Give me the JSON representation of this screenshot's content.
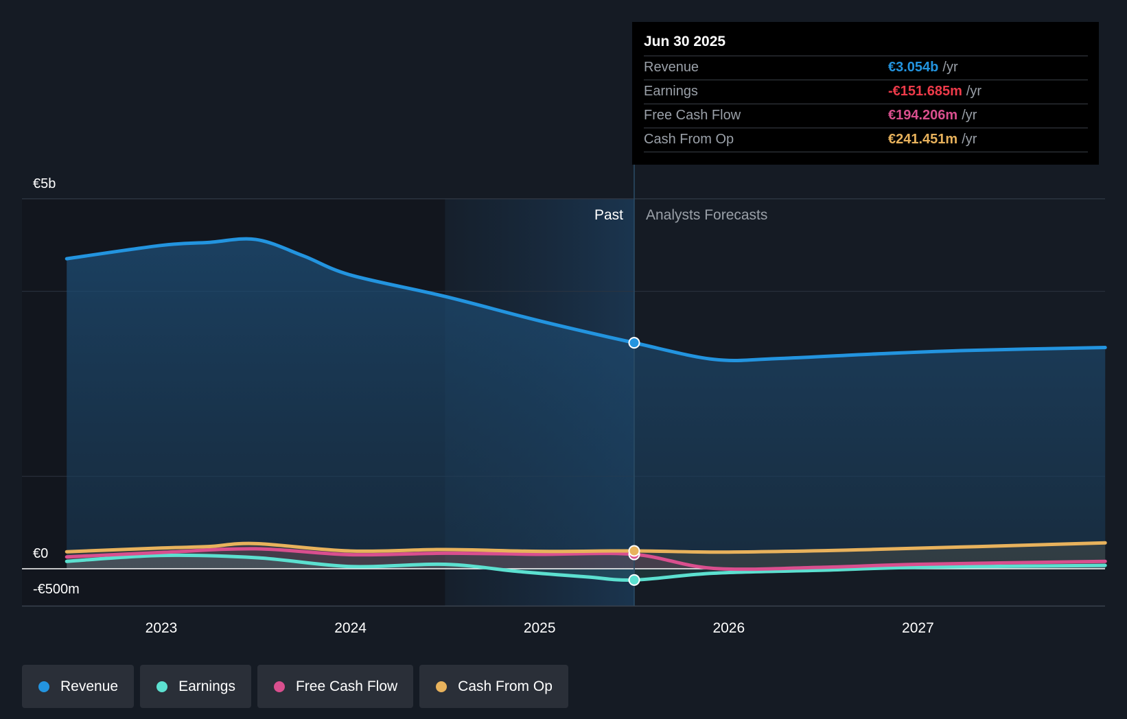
{
  "chart_data": {
    "type": "area",
    "title": "",
    "currency": "EUR",
    "y_unit": "€ millions",
    "ylim": [
      -500,
      5000
    ],
    "y_tick_labels": [
      {
        "value": 5000,
        "label": "€5b"
      },
      {
        "value": 0,
        "label": "€0"
      },
      {
        "value": -500,
        "label": "-€500m"
      }
    ],
    "x_ticks": [
      2023,
      2024,
      2025,
      2026,
      2027
    ],
    "xlim": [
      2022.5,
      2027.99
    ],
    "past_label": "Past",
    "forecast_label": "Analysts Forecasts",
    "past_end": 2025.5,
    "shade_start": 2024.5,
    "series": [
      {
        "name": "Revenue",
        "color": "#2394df",
        "points": [
          [
            2022.5,
            4190
          ],
          [
            2023.0,
            4370
          ],
          [
            2023.25,
            4410
          ],
          [
            2023.5,
            4450
          ],
          [
            2023.75,
            4230
          ],
          [
            2024.0,
            3970
          ],
          [
            2024.5,
            3680
          ],
          [
            2025.0,
            3350
          ],
          [
            2025.5,
            3054
          ],
          [
            2025.92,
            2830
          ],
          [
            2026.25,
            2840
          ],
          [
            2026.75,
            2900
          ],
          [
            2027.25,
            2950
          ],
          [
            2027.99,
            2990
          ]
        ]
      },
      {
        "name": "Earnings",
        "color": "#5ce0d0",
        "points": [
          [
            2022.5,
            100
          ],
          [
            2023.0,
            180
          ],
          [
            2023.5,
            150
          ],
          [
            2024.0,
            30
          ],
          [
            2024.5,
            60
          ],
          [
            2024.9,
            -40
          ],
          [
            2025.25,
            -110
          ],
          [
            2025.5,
            -151.685
          ],
          [
            2025.92,
            -60
          ],
          [
            2026.5,
            -20
          ],
          [
            2027.0,
            20
          ],
          [
            2027.99,
            45
          ]
        ]
      },
      {
        "name": "Free Cash Flow",
        "color": "#d94f8e",
        "points": [
          [
            2022.5,
            160
          ],
          [
            2023.0,
            220
          ],
          [
            2023.5,
            270
          ],
          [
            2024.0,
            190
          ],
          [
            2024.5,
            210
          ],
          [
            2025.0,
            195
          ],
          [
            2025.5,
            194.206
          ],
          [
            2025.92,
            5
          ],
          [
            2026.5,
            20
          ],
          [
            2027.0,
            60
          ],
          [
            2027.99,
            100
          ]
        ]
      },
      {
        "name": "Cash From Op",
        "color": "#e8b25c",
        "points": [
          [
            2022.5,
            230
          ],
          [
            2023.0,
            280
          ],
          [
            2023.25,
            300
          ],
          [
            2023.5,
            340
          ],
          [
            2024.0,
            240
          ],
          [
            2024.5,
            260
          ],
          [
            2025.0,
            235
          ],
          [
            2025.5,
            241.451
          ],
          [
            2026.0,
            225
          ],
          [
            2026.75,
            260
          ],
          [
            2027.99,
            350
          ]
        ]
      }
    ],
    "tooltip": {
      "date": "Jun 30 2025",
      "unit": "/yr",
      "rows": [
        {
          "label": "Revenue",
          "value": "€3.054b",
          "color": "#2394df"
        },
        {
          "label": "Earnings",
          "value": "-€151.685m",
          "color": "#ee3b4a"
        },
        {
          "label": "Free Cash Flow",
          "value": "€194.206m",
          "color": "#d94f8e"
        },
        {
          "label": "Cash From Op",
          "value": "€241.451m",
          "color": "#e8b25c"
        }
      ]
    },
    "legend": [
      {
        "label": "Revenue",
        "color": "#2394df"
      },
      {
        "label": "Earnings",
        "color": "#5ce0d0"
      },
      {
        "label": "Free Cash Flow",
        "color": "#d94f8e"
      },
      {
        "label": "Cash From Op",
        "color": "#e8b25c"
      }
    ]
  }
}
